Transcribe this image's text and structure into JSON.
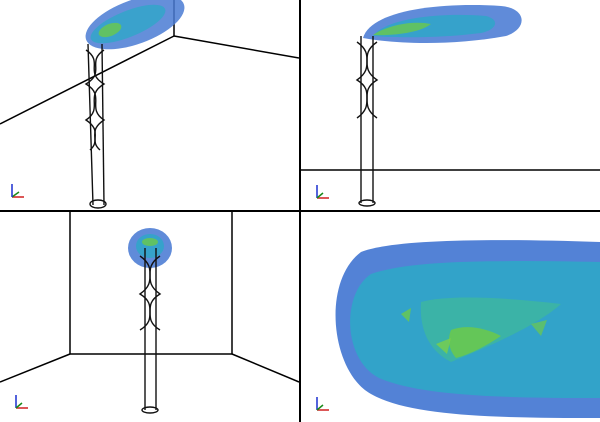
{
  "window": {
    "title": ""
  },
  "viewports": [
    {
      "id": "perspective",
      "label": "",
      "axis_colors": {
        "x": "#d11f1f",
        "y": "#1b8a1b",
        "z": "#1a2fd1"
      }
    },
    {
      "id": "side",
      "label": "",
      "axis_colors": {
        "x": "#d11f1f",
        "y": "#1b8a1b",
        "z": "#1a2fd1"
      }
    },
    {
      "id": "front",
      "label": "",
      "axis_colors": {
        "x": "#d11f1f",
        "y": "#1b8a1b",
        "z": "#1a2fd1"
      }
    },
    {
      "id": "zoom",
      "label": "",
      "axis_colors": {
        "x": "#d11f1f",
        "y": "#1b8a1b",
        "z": "#1a2fd1"
      }
    }
  ],
  "scene": {
    "plume_color_outer": "#4a7bd4",
    "plume_color_inner": "#2fa6c8",
    "plume_highlight": "#6cc94a",
    "structure_color": "#111111",
    "room_line_color": "#000000"
  }
}
